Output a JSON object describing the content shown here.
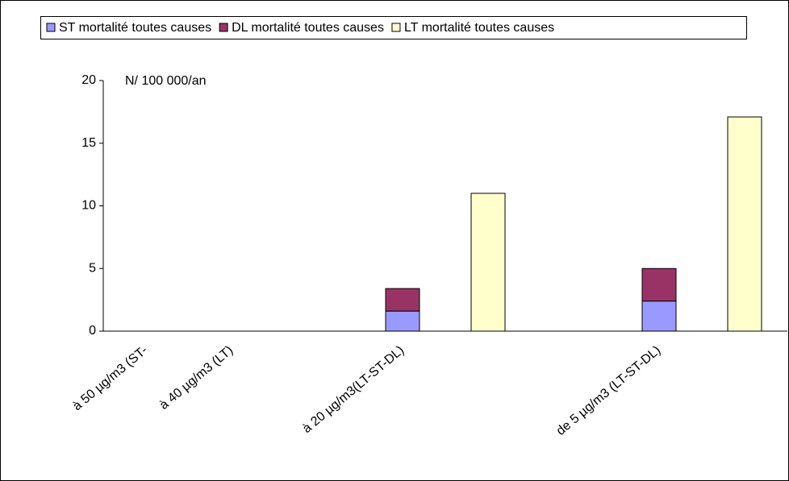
{
  "chart_data": {
    "type": "stacked_bar",
    "y_label": "N/ 100 000/an",
    "categories": [
      "à 50 µg/m3 (ST-",
      "à 40 µg/m3 (LT)",
      null,
      "à 20 µg/m3(LT-ST-DL)",
      null,
      null,
      "de 5 µg/m3 (LT-ST-DL)",
      null
    ],
    "series": [
      {
        "name": "ST mortalité toutes causes",
        "color": "#9999ff",
        "values": [
          null,
          null,
          null,
          1.6,
          null,
          null,
          2.4,
          null
        ]
      },
      {
        "name": "DL mortalité toutes causes",
        "color": "#993366",
        "values": [
          null,
          null,
          null,
          1.8,
          null,
          null,
          2.6,
          null
        ]
      },
      {
        "name": "LT mortalité toutes causes",
        "color": "#ffffcc",
        "values": [
          null,
          null,
          null,
          null,
          11,
          null,
          null,
          17.1
        ]
      }
    ],
    "ylim": [
      0,
      20
    ],
    "yticks": [
      0,
      5,
      10,
      15,
      20
    ],
    "grid": false,
    "legend": "top"
  }
}
